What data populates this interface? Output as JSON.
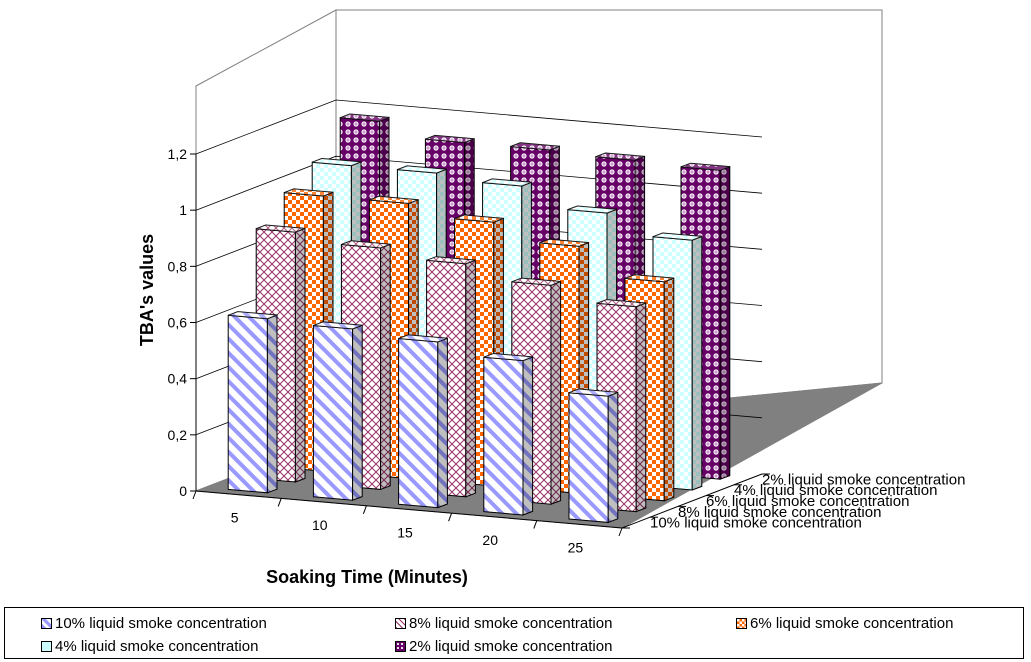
{
  "chart_data": {
    "type": "bar",
    "subtype": "3d-column",
    "xlabel": "Soaking Time (Minutes)",
    "ylabel": "TBA's values",
    "categories": [
      "5",
      "10",
      "15",
      "20",
      "25"
    ],
    "y_ticks": [
      "0",
      "0,2",
      "0,4",
      "0,6",
      "0,8",
      "1",
      "1,2"
    ],
    "ylim": [
      0,
      1.2
    ],
    "series": [
      {
        "name": "10% liquid smoke concentration",
        "values": [
          0.62,
          0.61,
          0.59,
          0.55,
          0.45
        ],
        "color": "#9999ff",
        "pattern": "diagonal-stripes"
      },
      {
        "name": "8% liquid smoke concentration",
        "values": [
          0.89,
          0.86,
          0.83,
          0.78,
          0.73
        ],
        "color": "#993366",
        "pattern": "lattice"
      },
      {
        "name": "6% liquid smoke concentration",
        "values": [
          0.98,
          0.98,
          0.94,
          0.88,
          0.78
        ],
        "color": "#ff6600",
        "pattern": "checker"
      },
      {
        "name": "4% liquid smoke concentration",
        "values": [
          1.05,
          1.05,
          1.03,
          0.96,
          0.89
        ],
        "color": "#ccffff",
        "pattern": "checker-light"
      },
      {
        "name": "2% liquid smoke concentration",
        "values": [
          1.17,
          1.12,
          1.12,
          1.11,
          1.1
        ],
        "color": "#660066",
        "pattern": "dots"
      }
    ],
    "grid": true,
    "legend_position": "bottom"
  }
}
